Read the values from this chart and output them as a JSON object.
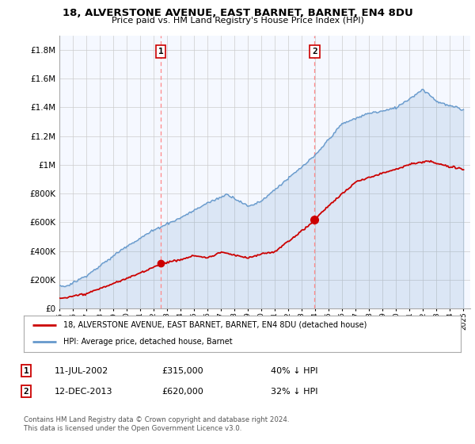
{
  "title": "18, ALVERSTONE AVENUE, EAST BARNET, BARNET, EN4 8DU",
  "subtitle": "Price paid vs. HM Land Registry's House Price Index (HPI)",
  "legend_line1": "18, ALVERSTONE AVENUE, EAST BARNET, BARNET, EN4 8DU (detached house)",
  "legend_line2": "HPI: Average price, detached house, Barnet",
  "sale1_date": "11-JUL-2002",
  "sale1_price": "£315,000",
  "sale1_hpi": "40% ↓ HPI",
  "sale2_date": "12-DEC-2013",
  "sale2_price": "£620,000",
  "sale2_hpi": "32% ↓ HPI",
  "footer": "Contains HM Land Registry data © Crown copyright and database right 2024.\nThis data is licensed under the Open Government Licence v3.0.",
  "hpi_color": "#6699cc",
  "fill_color": "#ddeeff",
  "price_color": "#cc0000",
  "vline_color": "#ff8888",
  "background_color": "#f5f8ff",
  "ylim": [
    0,
    1900000
  ],
  "yticks": [
    0,
    200000,
    400000,
    600000,
    800000,
    1000000,
    1200000,
    1400000,
    1600000,
    1800000
  ],
  "xlim_start": 1995.0,
  "xlim_end": 2025.5,
  "xtick_years": [
    1995,
    1996,
    1997,
    1998,
    1999,
    2000,
    2001,
    2002,
    2003,
    2004,
    2005,
    2006,
    2007,
    2008,
    2009,
    2010,
    2011,
    2012,
    2013,
    2014,
    2015,
    2016,
    2017,
    2018,
    2019,
    2020,
    2021,
    2022,
    2023,
    2024,
    2025
  ],
  "sale1_x": 2002.53,
  "sale1_y": 315000,
  "sale2_x": 2013.95,
  "sale2_y": 620000,
  "num_points": 360
}
